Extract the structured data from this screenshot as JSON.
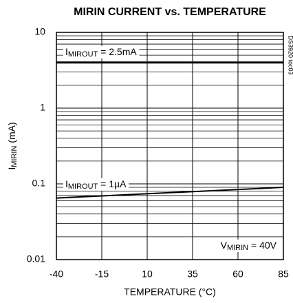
{
  "chart_data": {
    "type": "line",
    "title": "MIRIN CURRENT vs. TEMPERATURE",
    "x_label": "TEMPERATURE (°C)",
    "y_label": {
      "main": "I",
      "sub": "MIRIN",
      "rest": " (mA)"
    },
    "side_note": "DS3920 toc03",
    "x": [
      -40,
      85
    ],
    "series": [
      {
        "label": {
          "main": "I",
          "sub": "MIROUT",
          "rest": " = 2.5mA"
        },
        "color": "#000000",
        "values": [
          4,
          4
        ]
      },
      {
        "label": {
          "main": "I",
          "sub": "MIROUT",
          "rest": " = 1µA"
        },
        "color": "#000000",
        "values": [
          0.065,
          0.09
        ]
      }
    ],
    "annotation": {
      "main": "V",
      "sub": "MIRIN",
      "rest": " = 40V"
    },
    "xlim": [
      -40,
      85
    ],
    "xticks": [
      -40,
      -15,
      10,
      35,
      60,
      85
    ],
    "ylim": [
      0.01,
      10
    ],
    "yticks": [
      0.01,
      0.1,
      1,
      10
    ],
    "log_y": true,
    "grid": true
  }
}
